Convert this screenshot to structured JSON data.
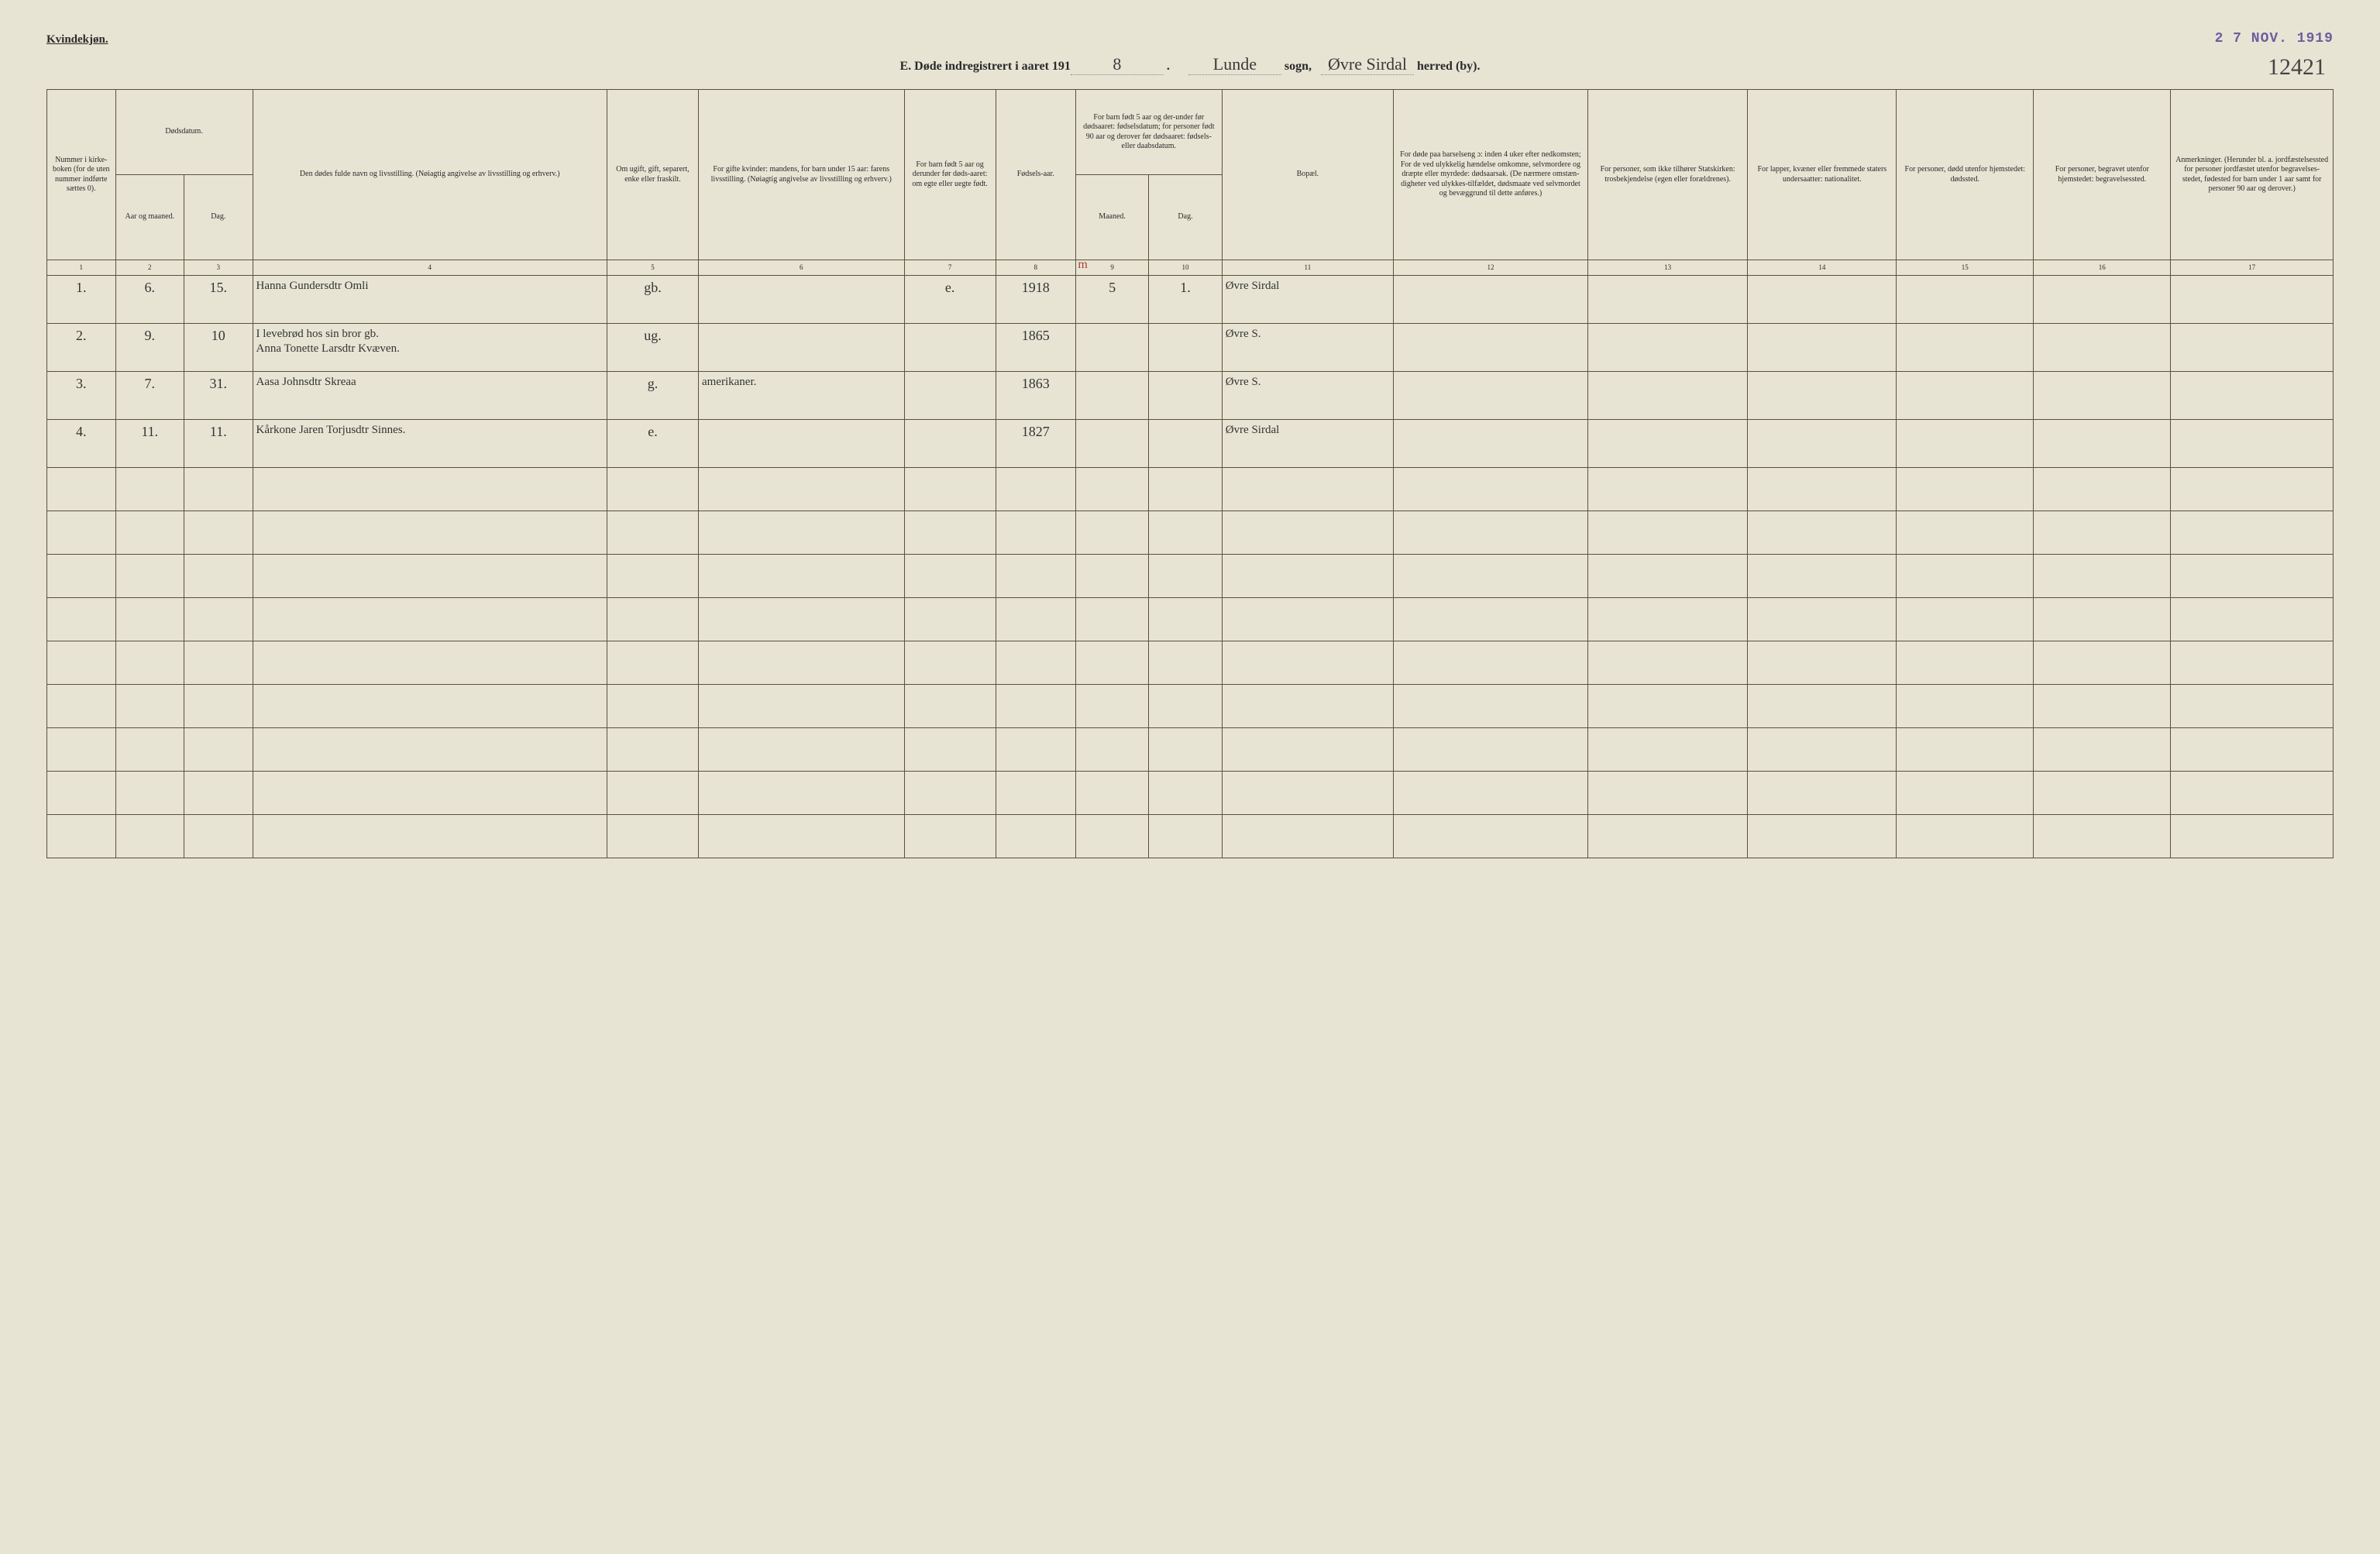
{
  "header": {
    "gender_label": "Kvindekjøn.",
    "form_letter": "E.",
    "title_prefix": "Døde indregistrert i aaret 191",
    "year_suffix_hand": "8",
    "sogn_hand": "Lunde",
    "sogn_label": "sogn,",
    "herred_hand": "Øvre Sirdal",
    "herred_label": "herred (by).",
    "date_stamp": "2 7 NOV. 1919",
    "page_number_hand": "12421"
  },
  "columns": {
    "c1": "Nummer i kirke-boken (for de uten nummer indførte sættes 0).",
    "c2_group": "Dødsdatum.",
    "c2": "Aar og maaned.",
    "c3": "Dag.",
    "c4": "Den dødes fulde navn og livsstilling.\n(Nøiagtig angivelse av livsstilling og erhverv.)",
    "c5": "Om ugift, gift, separert, enke eller fraskilt.",
    "c6": "For gifte kvinder:\nmandens,\nfor barn under 15 aar:\nfarens livsstilling.\n(Nøiagtig angivelse av livsstilling og erhverv.)",
    "c7": "For barn født 5 aar og derunder før døds-aaret: om egte eller uegte født.",
    "c8": "Fødsels-aar.",
    "c9_10_group": "For barn født 5 aar og der-under før dødsaaret: fødselsdatum; for personer født 90 aar og derover før dødsaaret: fødsels- eller daabsdatum.",
    "c9": "Maaned.",
    "c10": "Dag.",
    "c11": "Bopæl.",
    "c12": "For døde paa barselseng ɔ: inden 4 uker efter nedkomsten; For de ved ulykkelig hændelse omkomne, selvmordere og dræpte eller myrdede: dødsaarsak. (De nærmere omstæn-digheter ved ulykkes-tilfældet, dødsmaate ved selvmordet og bevæggrund til dette anføres.)",
    "c13": "For personer, som ikke tilhører Statskirken: trosbekjendelse (egen eller forældrenes).",
    "c14": "For lapper, kvæner eller fremmede staters undersaatter: nationalitet.",
    "c15": "For personer, dødd utenfor hjemstedet: dødssted.",
    "c16": "For personer, begravet utenfor hjemstedet: begravelsessted.",
    "c17": "Anmerkninger. (Herunder bl. a. jordfæstelsessted for personer jordfæstet utenfor begravelses-stedet, fødested for barn under 1 aar samt for personer 90 aar og derover.)"
  },
  "colnums": [
    "1",
    "2",
    "3",
    "4",
    "5",
    "6",
    "7",
    "8",
    "9",
    "10",
    "11",
    "12",
    "13",
    "14",
    "15",
    "16",
    "17"
  ],
  "red_annotation": "0 / m",
  "rows": [
    {
      "num": "1.",
      "aar_md": "6.",
      "dag": "15.",
      "navn": "Hanna Gundersdtr Omli",
      "status": "gb.",
      "mand_far": "",
      "egte": "e.",
      "faar": "1918",
      "fmd": "5",
      "fdag": "1.",
      "bopael": "Øvre Sirdal"
    },
    {
      "num": "2.",
      "aar_md": "9.",
      "dag": "10",
      "navn": "I levebrød hos sin bror gb.\nAnna Tonette Larsdtr Kvæven.",
      "status": "ug.",
      "mand_far": "",
      "egte": "",
      "faar": "1865",
      "fmd": "",
      "fdag": "",
      "bopael": "Øvre S."
    },
    {
      "num": "3.",
      "aar_md": "7.",
      "dag": "31.",
      "navn": "Aasa Johnsdtr Skreaa",
      "status": "g.",
      "mand_far": "amerikaner.",
      "egte": "",
      "faar": "1863",
      "fmd": "",
      "fdag": "",
      "bopael": "Øvre S."
    },
    {
      "num": "4.",
      "aar_md": "11.",
      "dag": "11.",
      "navn": "Kårkone Jaren Torjusdtr Sinnes.",
      "status": "e.",
      "mand_far": "",
      "egte": "",
      "faar": "1827",
      "fmd": "",
      "fdag": "",
      "bopael": "Øvre Sirdal"
    }
  ],
  "empty_row_count": 9
}
